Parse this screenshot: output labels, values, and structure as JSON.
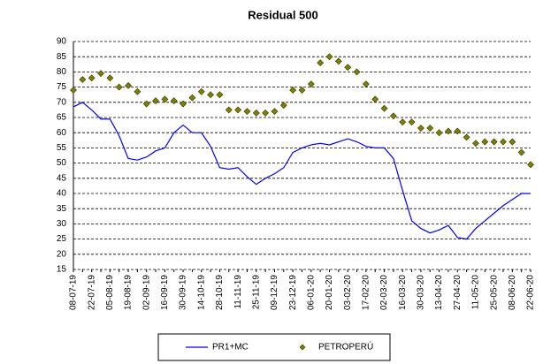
{
  "chart_data": {
    "type": "line",
    "title": "Residual 500",
    "categories": [
      "08-07-19",
      null,
      "22-07-19",
      null,
      "05-08-19",
      null,
      "19-08-19",
      null,
      "02-09-19",
      null,
      "16-09-19",
      null,
      "30-09-19",
      null,
      "14-10-19",
      null,
      "28-10-19",
      null,
      "11-11-19",
      null,
      "25-11-19",
      null,
      "09-12-19",
      null,
      "23-12-19",
      null,
      "06-01-20",
      null,
      "20-01-20",
      null,
      "03-02-20",
      null,
      "17-02-20",
      null,
      "02-03-20",
      null,
      "16-03-20",
      null,
      "30-03-20",
      null,
      "13-04-20",
      null,
      "27-04-20",
      null,
      "11-05-20",
      null,
      "25-05-20",
      null,
      "08-06-20",
      null,
      "22-06-20"
    ],
    "series": [
      {
        "name": "PR1+MC",
        "color": "#0000ff",
        "style": "line",
        "values": [
          68.5,
          70,
          67.5,
          64.5,
          64.5,
          59,
          51.5,
          51,
          52,
          54,
          55,
          60,
          62.5,
          60,
          60,
          55.5,
          48.5,
          48,
          48.5,
          45.5,
          43,
          45,
          46.5,
          48.5,
          53.5,
          55,
          56,
          56.5,
          56,
          57,
          58,
          57,
          55.5,
          55,
          55,
          51.5,
          41,
          31,
          28.5,
          27,
          28,
          29.5,
          25.5,
          25,
          28.5,
          31,
          33.5,
          36,
          38,
          40,
          40
        ]
      },
      {
        "name": "PETROPERÚ",
        "color": "#808000",
        "style": "marker",
        "values": [
          74,
          77.5,
          78,
          79.5,
          78,
          75,
          75.5,
          73.5,
          69.5,
          70.5,
          71,
          70.5,
          69.5,
          71.5,
          73.5,
          72.5,
          72.5,
          67.5,
          67.5,
          67,
          66.5,
          66.5,
          67,
          69,
          74,
          74,
          76,
          83,
          85,
          83.5,
          81.5,
          80,
          76,
          71,
          68,
          65.5,
          63.5,
          63.5,
          61.5,
          61.5,
          60,
          60.5,
          60.5,
          58.5,
          56.5,
          57,
          57,
          57,
          57,
          53.5,
          49.5
        ]
      }
    ],
    "ylim": [
      15,
      90
    ],
    "yticks": [
      15,
      20,
      25,
      30,
      35,
      40,
      45,
      50,
      55,
      60,
      65,
      70,
      75,
      80,
      85,
      90
    ],
    "grid": true,
    "legend": "bottom"
  }
}
